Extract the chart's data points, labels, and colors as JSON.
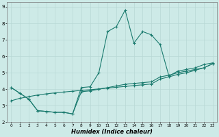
{
  "xlabel": "Humidex (Indice chaleur)",
  "x_values": [
    0,
    1,
    2,
    3,
    4,
    5,
    6,
    7,
    8,
    9,
    10,
    11,
    12,
    13,
    14,
    15,
    16,
    17,
    18,
    19,
    20,
    21,
    22,
    23
  ],
  "line1": [
    4.1,
    3.75,
    3.4,
    2.7,
    2.65,
    2.6,
    2.6,
    2.5,
    4.1,
    4.15,
    5.0,
    7.5,
    7.8,
    8.8,
    6.8,
    7.5,
    7.3,
    6.7,
    4.8,
    5.1,
    5.2,
    5.3,
    5.5,
    5.6
  ],
  "line2": [
    4.1,
    3.75,
    3.4,
    2.7,
    2.65,
    2.6,
    2.6,
    2.5,
    3.85,
    3.9,
    4.0,
    4.1,
    4.2,
    4.3,
    4.35,
    4.4,
    4.45,
    4.75,
    4.85,
    5.0,
    5.1,
    5.2,
    5.3,
    5.55
  ],
  "line3": [
    3.3,
    3.45,
    3.55,
    3.65,
    3.72,
    3.78,
    3.83,
    3.88,
    3.93,
    3.97,
    4.02,
    4.07,
    4.12,
    4.17,
    4.22,
    4.27,
    4.32,
    4.62,
    4.75,
    4.9,
    5.0,
    5.15,
    5.3,
    5.55
  ],
  "ylim": [
    2.0,
    9.3
  ],
  "xlim": [
    -0.5,
    23.5
  ],
  "yticks": [
    2,
    3,
    4,
    5,
    6,
    7,
    8,
    9
  ],
  "xticks": [
    0,
    1,
    2,
    3,
    4,
    5,
    6,
    7,
    8,
    9,
    10,
    11,
    12,
    13,
    14,
    15,
    16,
    17,
    18,
    19,
    20,
    21,
    22,
    23
  ],
  "line_color": "#1a7a6e",
  "bg_color": "#cdeae7",
  "grid_color": "#b8d8d5",
  "plot_bg": "#cdeae7"
}
